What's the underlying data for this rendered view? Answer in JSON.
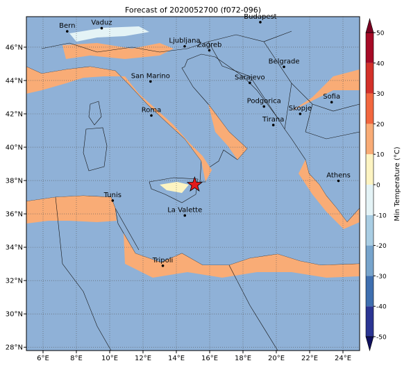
{
  "title": "Forecast of 2020052700 (f072-096)",
  "map": {
    "lonlim": [
      5,
      25
    ],
    "latlim": [
      27.8,
      47.83
    ],
    "lonticks": [
      {
        "value": 6,
        "label": "6°E"
      },
      {
        "value": 8,
        "label": "8°E"
      },
      {
        "value": 10,
        "label": "10°E"
      },
      {
        "value": 12,
        "label": "12°E"
      },
      {
        "value": 14,
        "label": "14°E"
      },
      {
        "value": 16,
        "label": "16°E"
      },
      {
        "value": 18,
        "label": "18°E"
      },
      {
        "value": 20,
        "label": "20°E"
      },
      {
        "value": 22,
        "label": "22°E"
      },
      {
        "value": 24,
        "label": "24°E"
      }
    ],
    "latticks": [
      {
        "value": 28,
        "label": "28°N"
      },
      {
        "value": 30,
        "label": "30°N"
      },
      {
        "value": 32,
        "label": "32°N"
      },
      {
        "value": 34,
        "label": "34°N"
      },
      {
        "value": 36,
        "label": "36°N"
      },
      {
        "value": 38,
        "label": "38°N"
      },
      {
        "value": 40,
        "label": "40°N"
      },
      {
        "value": 42,
        "label": "42°N"
      },
      {
        "value": 44,
        "label": "44°N"
      },
      {
        "value": 46,
        "label": "46°N"
      }
    ],
    "cities": [
      {
        "name": "Bern",
        "lon": 7.45,
        "lat": 46.95
      },
      {
        "name": "Vaduz",
        "lon": 9.52,
        "lat": 47.14
      },
      {
        "name": "Budapest",
        "lon": 19.04,
        "lat": 47.5
      },
      {
        "name": "Ljubljana",
        "lon": 14.5,
        "lat": 46.05
      },
      {
        "name": "Zagreb",
        "lon": 15.98,
        "lat": 45.81
      },
      {
        "name": "Belgrade",
        "lon": 20.46,
        "lat": 44.82
      },
      {
        "name": "San Marino",
        "lon": 12.45,
        "lat": 43.94
      },
      {
        "name": "Sarajevo",
        "lon": 18.41,
        "lat": 43.86
      },
      {
        "name": "Sofia",
        "lon": 23.32,
        "lat": 42.7
      },
      {
        "name": "Podgorica",
        "lon": 19.26,
        "lat": 42.44
      },
      {
        "name": "Skopje",
        "lon": 21.43,
        "lat": 42.0
      },
      {
        "name": "Roma",
        "lon": 12.5,
        "lat": 41.9
      },
      {
        "name": "Tirana",
        "lon": 19.82,
        "lat": 41.33
      },
      {
        "name": "Athens",
        "lon": 23.73,
        "lat": 37.98
      },
      {
        "name": "Tunis",
        "lon": 10.18,
        "lat": 36.8
      },
      {
        "name": "La Valette",
        "lon": 14.51,
        "lat": 35.9
      },
      {
        "name": "Tripoli",
        "lon": 13.19,
        "lat": 32.89
      }
    ],
    "marker": {
      "lon": 15.1,
      "lat": 37.75,
      "color": "#e41a1c"
    }
  },
  "colorbar": {
    "label": "Min Temperature (°C)",
    "ticks": [
      -50,
      -40,
      -30,
      -20,
      -10,
      0,
      10,
      20,
      30,
      40,
      50
    ],
    "colors": [
      "#2b3593",
      "#3f6fb0",
      "#77a4cc",
      "#a9cde3",
      "#e4f3f6",
      "#fdf4c2",
      "#f9ac76",
      "#f2673f",
      "#d3312a",
      "#a60a26"
    ],
    "under": "#10105e",
    "over": "#7a0021"
  }
}
